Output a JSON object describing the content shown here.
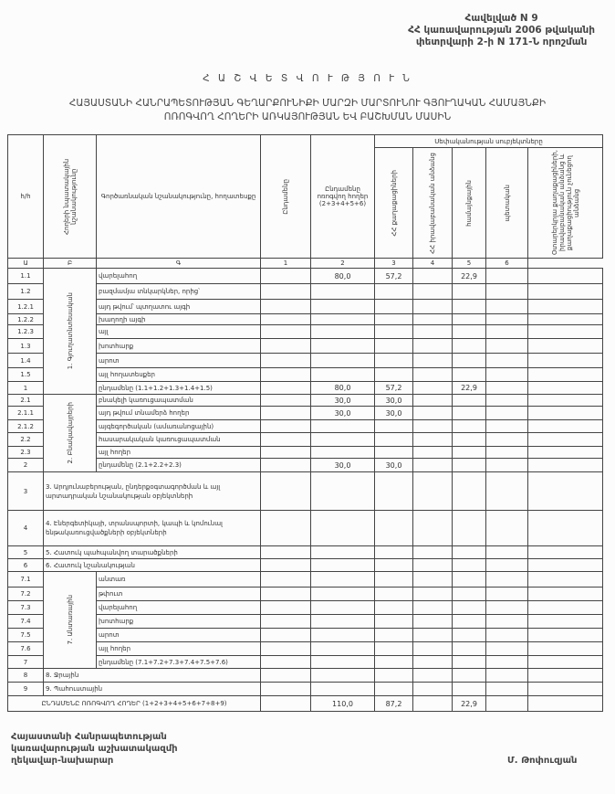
{
  "annex": {
    "line1": "Հավելված N 9",
    "line2": "ՀՀ կառավարության 2006 թվականի",
    "line3": "փետրվարի 2-ի N 171-Ն որոշման"
  },
  "title": "Հ Ա Շ Վ Ե Տ Վ Ո Ւ Թ Յ Ո Ւ Ն",
  "subtitle_line1": "ՀԱՅԱՍՏԱՆԻ ՀԱՆՐԱՊԵՏՈՒԹՅԱՆ ԳԵՂԱՐՔՈՒՆԻՔԻ ՄԱՐԶԻ ՄԱՐՏՈՒՆՈՒ ԳՅՈՒՂԱԿԱՆ ՀԱՄԱՅՆՔԻ",
  "subtitle_line2": "ՈՌՈԳՎՈՂ ՀՈՂԵՐԻ ԱՌԿԱՅՈՒԹՅԱՆ ԵՎ ԲԱՇԽՄԱՆ ՄԱՍԻՆ",
  "table": {
    "headers": {
      "no": "հ/հ",
      "purpose": "Հողերի նպատակային նշանակությունը",
      "landtype": "Գործառնական նշանակությունը, հողատեսքը",
      "total_all": "Ընդամենը",
      "total_irrigated": "Ընդամենը ոռոգվող հողեր (2+3+4+5+6)",
      "ownership": "Սեփականության սուբյեկտները",
      "citizens": "ՀՀ քաղաքացիների",
      "legal": "ՀՀ իրավաբանական անձանց",
      "community": "համայնքային",
      "state": "պետական",
      "foreign": "Օտարերկրյա քաղաքացիների, իրավաբանական անձանց և քաղաքացիություն չունեցող անձանց"
    },
    "index_row": [
      "Ա",
      "Բ",
      "Գ",
      "1",
      "2",
      "3",
      "4",
      "5",
      "6"
    ],
    "groups": [
      {
        "label": "1. Գյուղատնտեսական",
        "rows": [
          {
            "no": "1.1",
            "label": "վարելահող",
            "values": [
              "",
              "80,0",
              "57,2",
              "",
              "22,9",
              "",
              ""
            ]
          },
          {
            "no": "1.2",
            "label": "բազմամյա տնկարկներ, որից՝",
            "values": [
              "",
              "",
              "",
              "",
              "",
              "",
              ""
            ]
          },
          {
            "no": "1.2.1",
            "label": "այդ թվում՝        պտղատու այգի",
            "values": [
              "",
              "",
              "",
              "",
              "",
              "",
              ""
            ]
          },
          {
            "no": "1.2.2",
            "label": "                      խաղողի այգի",
            "values": [
              "",
              "",
              "",
              "",
              "",
              "",
              ""
            ]
          },
          {
            "no": "1.2.3",
            "label": "այլ",
            "values": [
              "",
              "",
              "",
              "",
              "",
              "",
              ""
            ]
          },
          {
            "no": "1.3",
            "label": "խոտհարք",
            "values": [
              "",
              "",
              "",
              "",
              "",
              "",
              ""
            ]
          },
          {
            "no": "1.4",
            "label": "արոտ",
            "values": [
              "",
              "",
              "",
              "",
              "",
              "",
              ""
            ]
          },
          {
            "no": "1.5",
            "label": "այլ հողատեսքեր",
            "values": [
              "",
              "",
              "",
              "",
              "",
              "",
              ""
            ]
          },
          {
            "no": "1",
            "label": "ընդամենը (1.1+1.2+1.3+1.4+1.5)",
            "values": [
              "",
              "80,0",
              "57,2",
              "",
              "22,9",
              "",
              ""
            ]
          }
        ]
      },
      {
        "label": "2. Բնակավայրերի",
        "rows": [
          {
            "no": "2.1",
            "label": "բնակելի կառուցապատման",
            "values": [
              "",
              "30,0",
              "30,0",
              "",
              "",
              "",
              ""
            ]
          },
          {
            "no": "2.1.1",
            "label": "այդ թվում տնամերձ հողեր",
            "values": [
              "",
              "30,0",
              "30,0",
              "",
              "",
              "",
              ""
            ]
          },
          {
            "no": "2.1.2",
            "label": "այգեգործական (ամառանոցային)",
            "values": [
              "",
              "",
              "",
              "",
              "",
              "",
              ""
            ]
          },
          {
            "no": "2.2",
            "label": "հասարակական կառուցապատման",
            "values": [
              "",
              "",
              "",
              "",
              "",
              "",
              ""
            ]
          },
          {
            "no": "2.3",
            "label": "այլ հողեր",
            "values": [
              "",
              "",
              "",
              "",
              "",
              "",
              ""
            ]
          },
          {
            "no": "2",
            "label": "ընդամենը (2.1+2.2+2.3)",
            "values": [
              "",
              "30,0",
              "30,0",
              "",
              "",
              "",
              ""
            ]
          }
        ]
      }
    ],
    "single_rows_a": [
      {
        "no": "3",
        "label": "3. Արդյունաբերության, ընդերքօգտագործման և այլ արտադրական նշանակության օբյեկտների",
        "values": [
          "",
          "",
          "",
          "",
          "",
          "",
          ""
        ]
      },
      {
        "no": "4",
        "label": "4. Էներգետիկայի, տրանսպորտի, կապի և կոմունալ ենթակառուցվածքների օբյեկտների",
        "values": [
          "",
          "",
          "",
          "",
          "",
          "",
          ""
        ]
      },
      {
        "no": "5",
        "label": "5. Հատուկ պահպանվող տարածքների",
        "values": [
          "",
          "",
          "",
          "",
          "",
          "",
          ""
        ]
      },
      {
        "no": "6",
        "label": "6. Հատուկ նշանակության",
        "values": [
          "",
          "",
          "",
          "",
          "",
          "",
          ""
        ]
      }
    ],
    "forest_group": {
      "label": "7. Անտառային",
      "rows": [
        {
          "no": "7.1",
          "label": "անտառ",
          "values": [
            "",
            "",
            "",
            "",
            "",
            "",
            ""
          ]
        },
        {
          "no": "7.2",
          "label": "թփուտ",
          "values": [
            "",
            "",
            "",
            "",
            "",
            "",
            ""
          ]
        },
        {
          "no": "7.3",
          "label": "վարելահող",
          "values": [
            "",
            "",
            "",
            "",
            "",
            "",
            ""
          ]
        },
        {
          "no": "7.4",
          "label": "խոտհարք",
          "values": [
            "",
            "",
            "",
            "",
            "",
            "",
            ""
          ]
        },
        {
          "no": "7.5",
          "label": "արոտ",
          "values": [
            "",
            "",
            "",
            "",
            "",
            "",
            ""
          ]
        },
        {
          "no": "7.6",
          "label": "այլ հողեր",
          "values": [
            "",
            "",
            "",
            "",
            "",
            "",
            ""
          ]
        },
        {
          "no": "7",
          "label": "ընդամենը (7.1+7.2+7.3+7.4+7.5+7.6)",
          "values": [
            "",
            "",
            "",
            "",
            "",
            "",
            ""
          ]
        }
      ]
    },
    "single_rows_b": [
      {
        "no": "8",
        "label": "8. Ջրային",
        "values": [
          "",
          "",
          "",
          "",
          "",
          "",
          ""
        ]
      },
      {
        "no": "9",
        "label": "9. Պահուստային",
        "values": [
          "",
          "",
          "",
          "",
          "",
          "",
          ""
        ]
      }
    ],
    "total_row": {
      "label": "ԸՆԴԱՄԵՆԸ ՈՌՈԳՎՈՂ ՀՈՂԵՐ (1+2+3+4+5+6+7+8+9)",
      "values": [
        "",
        "110,0",
        "87,2",
        "",
        "22,9",
        "",
        ""
      ]
    }
  },
  "footer": {
    "line1": "Հայաստանի Հանրապետության",
    "line2": "կառավարության աշխատակազմի",
    "line3": "ղեկավար-նախարար",
    "signatory": "Մ. Թոփուզյան"
  }
}
